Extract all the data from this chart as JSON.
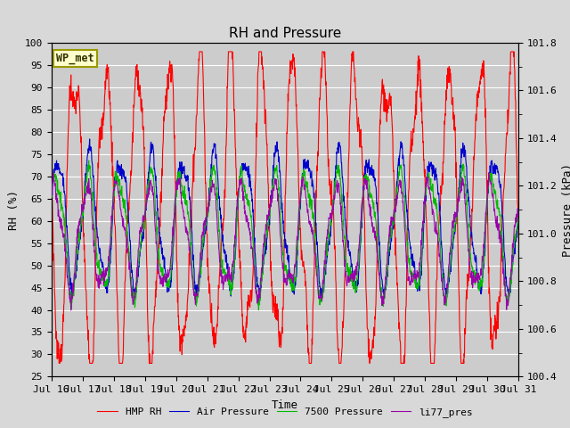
{
  "title": "RH and Pressure",
  "xlabel": "Time",
  "ylabel_left": "RH (%)",
  "ylabel_right": "Pressure (kPa)",
  "xlim": [
    0,
    15
  ],
  "ylim_left": [
    25,
    100
  ],
  "ylim_right": [
    100.4,
    101.8
  ],
  "yticks_left": [
    25,
    30,
    35,
    40,
    45,
    50,
    55,
    60,
    65,
    70,
    75,
    80,
    85,
    90,
    95,
    100
  ],
  "yticks_right": [
    100.4,
    100.6,
    100.8,
    101.0,
    101.2,
    101.4,
    101.6,
    101.8
  ],
  "xtick_labels": [
    "Jul 16",
    "Jul 17",
    "Jul 18",
    "Jul 19",
    "Jul 20",
    "Jul 21",
    "Jul 22",
    "Jul 23",
    "Jul 24",
    "Jul 25",
    "Jul 26",
    "Jul 27",
    "Jul 28",
    "Jul 29",
    "Jul 30",
    "Jul 31"
  ],
  "station_label": "WP_met",
  "legend_items": [
    "HMP RH",
    "Air Pressure",
    "7500 Pressure",
    "li77_pres"
  ],
  "legend_colors": [
    "#ff0000",
    "#0000cc",
    "#00bb00",
    "#9900aa"
  ],
  "bg_color": "#d8d8d8",
  "plot_bg_color": "#cccccc",
  "grid_color": "#ffffff",
  "title_fontsize": 11,
  "label_fontsize": 9,
  "tick_fontsize": 8
}
